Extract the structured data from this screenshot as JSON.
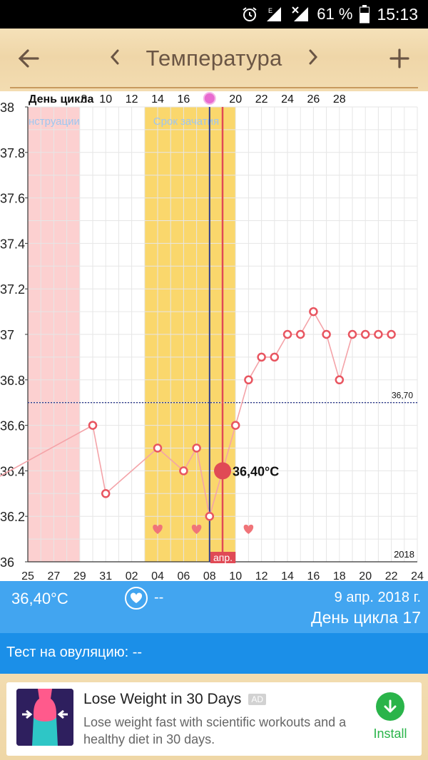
{
  "status_bar": {
    "battery_percent": "61 %",
    "time": "15:13",
    "network": "E",
    "icons": [
      "alarm-icon",
      "signal-icon",
      "no-signal-icon",
      "battery-icon"
    ]
  },
  "header": {
    "title": "Температура",
    "back_icon": "arrow-left-icon",
    "prev_icon": "chevron-left-icon",
    "next_icon": "chevron-right-icon",
    "add_icon": "plus-icon"
  },
  "chart_data": {
    "type": "line",
    "cycle_label": "День цикла",
    "cycle_day_ticks": [
      "8",
      "10",
      "12",
      "14",
      "16",
      "18",
      "20",
      "22",
      "24",
      "26",
      "28"
    ],
    "x_ticks": [
      "25",
      "27",
      "29",
      "31",
      "02",
      "04",
      "06",
      "08",
      "10",
      "12",
      "14",
      "16",
      "18",
      "20",
      "22",
      "24"
    ],
    "y_ticks": [
      "36",
      "36.2",
      "36.4",
      "36.6",
      "36.8",
      "37",
      "37.2",
      "37.4",
      "37.6",
      "37.8",
      "38"
    ],
    "ylim": [
      36,
      38
    ],
    "x_day_range": [
      0,
      30
    ],
    "year_label": "2018",
    "month_label": "апр.",
    "zones": [
      {
        "label": "нструации",
        "start_day": 0,
        "end_day": 4,
        "color": "#fcd0d0"
      },
      {
        "label": "Срок зачатия",
        "start_day": 9,
        "end_day": 16,
        "color": "#fad76c"
      }
    ],
    "coverline": {
      "value": 36.7,
      "label": "36,70"
    },
    "series": [
      {
        "x_days": [
          -3,
          5,
          6,
          10,
          12,
          13,
          14,
          15,
          16,
          17,
          18,
          19,
          20,
          21,
          22,
          23,
          24,
          25,
          26,
          27,
          28
        ],
        "values": [
          36.35,
          36.6,
          36.3,
          36.5,
          36.4,
          36.5,
          36.2,
          36.4,
          36.6,
          36.8,
          36.9,
          36.9,
          37.0,
          37.0,
          37.1,
          37.0,
          36.8,
          37.0,
          37.0,
          37.0,
          37.0
        ]
      }
    ],
    "selected": {
      "x_day": 15,
      "value": 36.4,
      "label": "36,40°C"
    },
    "ovulation_day": 14,
    "today_day": 15,
    "heart_days": [
      10,
      13,
      17
    ],
    "colors": {
      "line": "#f4a3a8",
      "point": "#e85560",
      "ovulation": "#2c3a8c",
      "today": "#e04a55",
      "coverline": "#2c3a8c",
      "grid": "#e6e6e6"
    }
  },
  "info": {
    "temperature": "36,40°C",
    "heart_icon": "heart-icon",
    "intercourse_value": "--",
    "date": "9 апр. 2018 г.",
    "cycle_day": "День цикла 17"
  },
  "test": {
    "label": "Тест на овуляцию: --"
  },
  "ad": {
    "title": "Lose Weight in 30 Days",
    "badge": "AD",
    "description": "Lose weight fast with scientific workouts and a healthy diet in 30 days.",
    "install_label": "Install"
  }
}
